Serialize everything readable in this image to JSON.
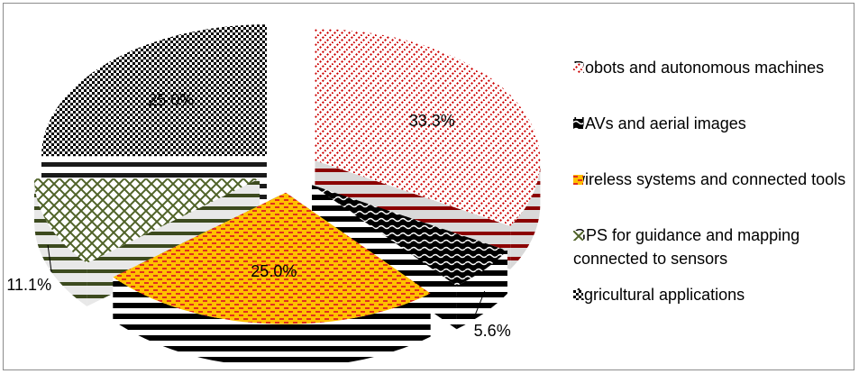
{
  "chart_data": {
    "type": "pie",
    "title": "",
    "slices": [
      {
        "name": "Robots and autonomous machines",
        "value": 33.3,
        "label": "33.3%",
        "pattern": "red-diagonal",
        "color": "#cc0000"
      },
      {
        "name": "UAVs and aerial images",
        "value": 5.6,
        "label": "5.6%",
        "pattern": "black-wave",
        "color": "#000000"
      },
      {
        "name": "wireless systems and connected tools",
        "value": 25.0,
        "label": "25.0%",
        "pattern": "orange-dashes",
        "color": "#ff9900"
      },
      {
        "name": "GPS for guidance and mapping connected to sensors",
        "value": 11.1,
        "label": "11.1%",
        "pattern": "green-grid",
        "color": "#4f6228"
      },
      {
        "name": "Agricultural applications",
        "value": 25.0,
        "label": "25.0%",
        "pattern": "black-checker",
        "color": "#000000"
      }
    ],
    "legend_position": "right",
    "exploded": true,
    "three_d": true
  }
}
